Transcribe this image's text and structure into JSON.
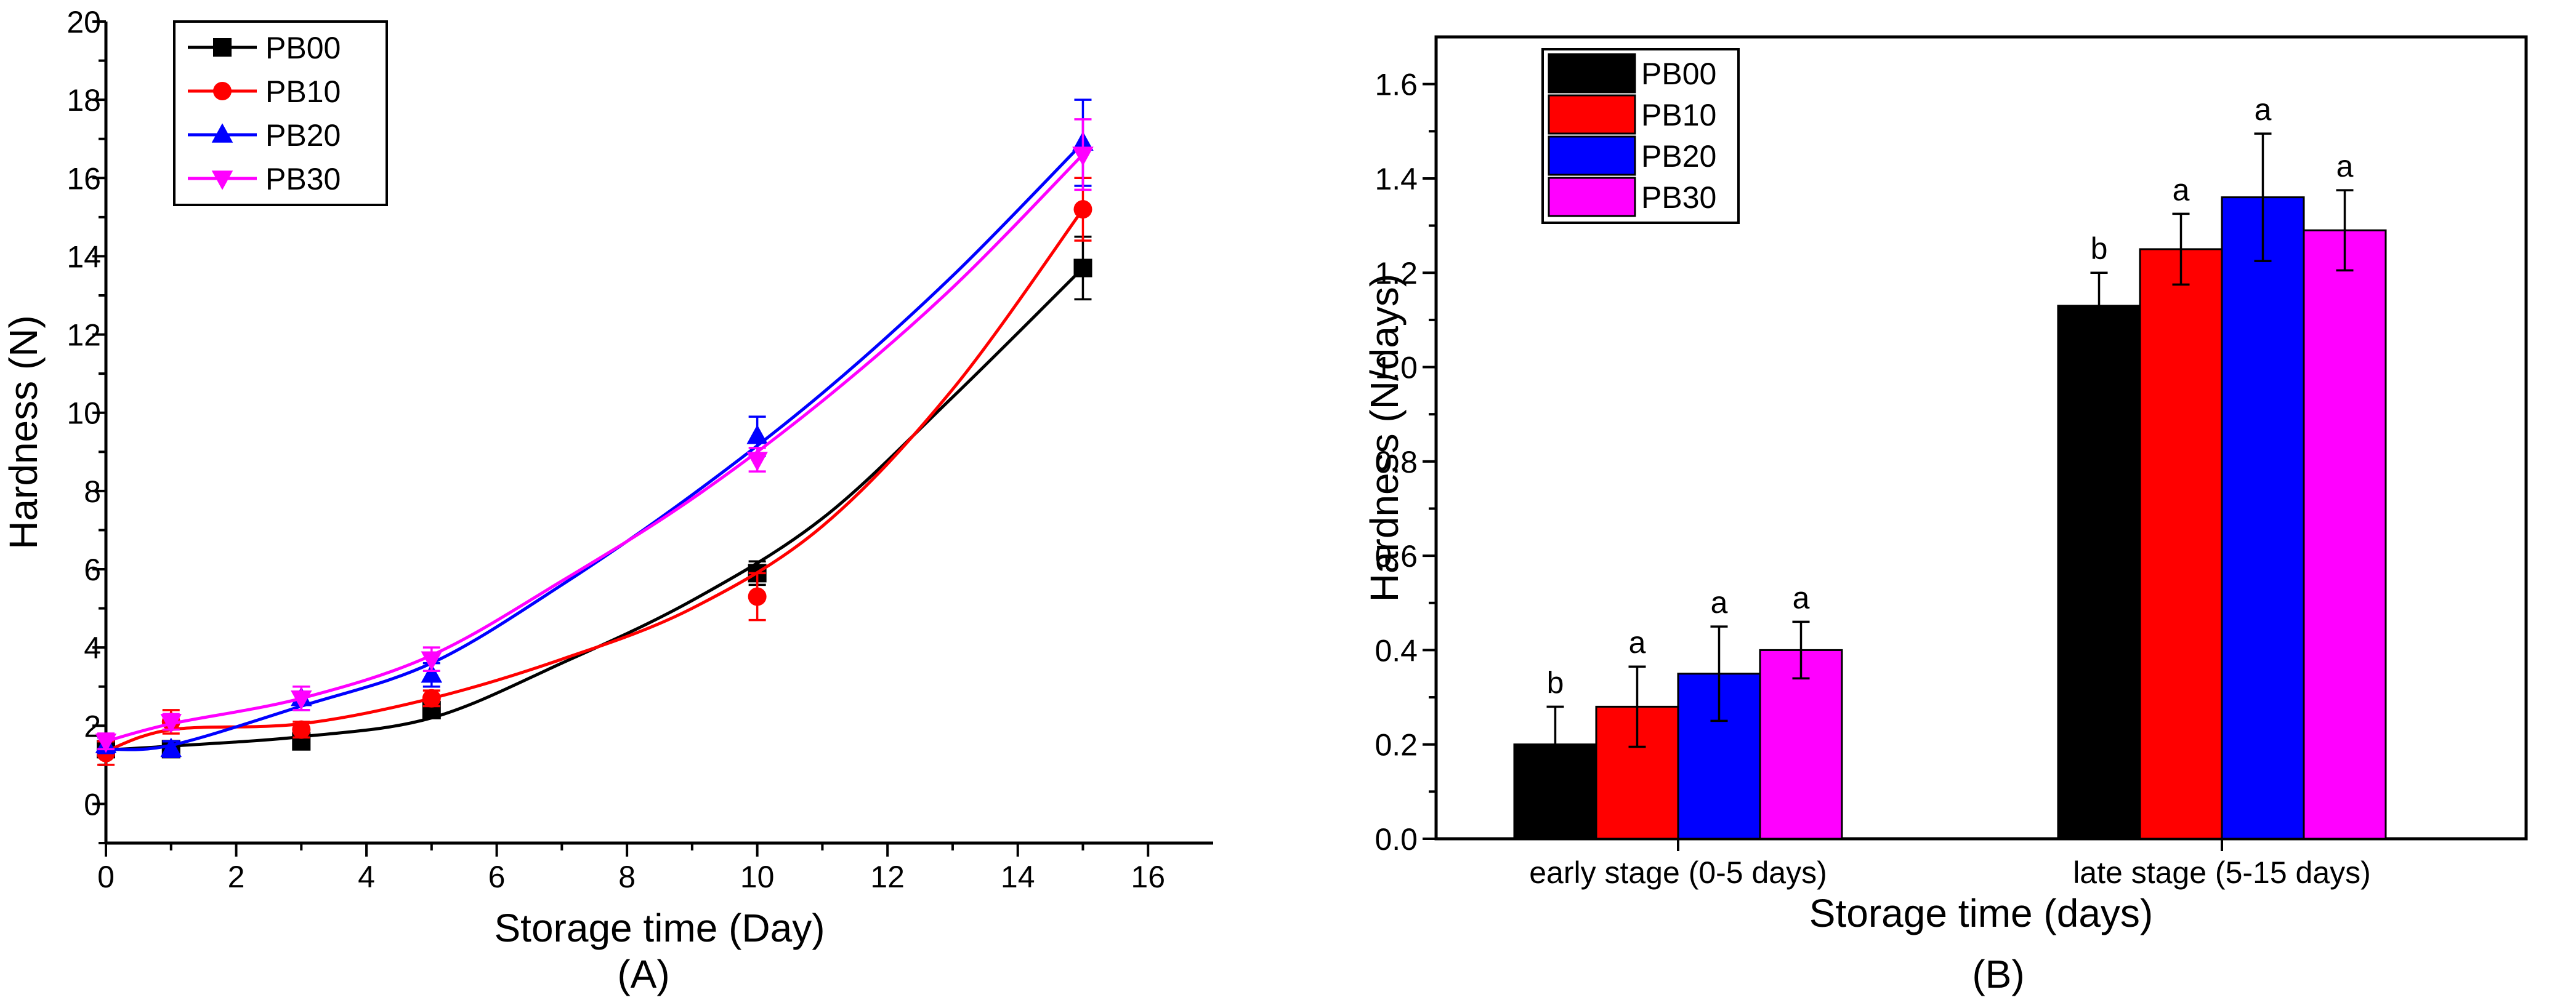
{
  "chart_data": [
    {
      "type": "line",
      "panel_label": "(A)",
      "xlabel": "Storage time (Day)",
      "ylabel": "Hardness (N)",
      "xlim": [
        0,
        17
      ],
      "ylim": [
        -1,
        20
      ],
      "x_ticks": [
        0,
        2,
        4,
        6,
        8,
        10,
        12,
        14,
        16
      ],
      "y_ticks": [
        0,
        2,
        4,
        6,
        8,
        10,
        12,
        14,
        16,
        18,
        20
      ],
      "legend_position": "top-left",
      "x": [
        0,
        1,
        3,
        5,
        10,
        15
      ],
      "series": [
        {
          "name": "PB00",
          "color": "#000000",
          "marker": "square",
          "values": [
            1.4,
            1.4,
            1.6,
            2.4,
            5.9,
            13.7
          ],
          "errors": [
            0.2,
            0.2,
            0.2,
            0.2,
            0.3,
            0.8
          ],
          "fit": [
            1.38,
            1.48,
            1.72,
            2.2,
            3.6,
            5.2,
            7.3,
            10.4,
            13.7
          ]
        },
        {
          "name": "PB10",
          "color": "#ff0000",
          "marker": "circle",
          "values": [
            1.3,
            2.1,
            1.9,
            2.7,
            5.3,
            15.2
          ],
          "errors": [
            0.3,
            0.3,
            0.2,
            0.2,
            0.6,
            0.8
          ],
          "fit": [
            1.35,
            1.9,
            2.05,
            2.7,
            3.7,
            5.0,
            7.1,
            10.6,
            15.2
          ]
        },
        {
          "name": "PB20",
          "color": "#0000ff",
          "marker": "triangle-up",
          "values": [
            1.5,
            1.4,
            2.7,
            3.3,
            9.4,
            16.9
          ],
          "errors": [
            0.2,
            0.2,
            0.3,
            0.3,
            0.5,
            1.1
          ],
          "fit": [
            1.4,
            1.5,
            2.5,
            3.6,
            5.6,
            7.9,
            10.5,
            13.5,
            16.9
          ]
        },
        {
          "name": "PB30",
          "color": "#ff00ff",
          "marker": "triangle-down",
          "values": [
            1.6,
            2.1,
            2.7,
            3.7,
            8.8,
            16.6
          ],
          "errors": [
            0.2,
            0.2,
            0.3,
            0.3,
            0.3,
            0.9
          ],
          "fit": [
            1.6,
            2.05,
            2.7,
            3.8,
            5.7,
            7.8,
            10.3,
            13.2,
            16.6
          ]
        }
      ],
      "fit_x": [
        0,
        1,
        3,
        5,
        7,
        9,
        11,
        13,
        15
      ]
    },
    {
      "type": "bar",
      "panel_label": "(B)",
      "xlabel": "Storage time (days)",
      "ylabel": "Hardness (N/days)",
      "ylim": [
        0,
        1.7
      ],
      "y_ticks": [
        0.0,
        0.2,
        0.4,
        0.6,
        0.8,
        1.0,
        1.2,
        1.4,
        1.6
      ],
      "y_tick_labels": [
        "0.0",
        "0.2",
        "0.4",
        "0.6",
        "0.8",
        "1.0",
        "1.2",
        "1.4",
        "1.6"
      ],
      "legend_position": "top-left",
      "categories": [
        "early stage (0-5 days)",
        "late stage (5-15 days)"
      ],
      "series": [
        {
          "name": "PB00",
          "color": "#000000",
          "values": [
            0.2,
            1.13
          ],
          "errors": [
            0.08,
            0.07
          ],
          "labels": [
            "b",
            "b"
          ]
        },
        {
          "name": "PB10",
          "color": "#ff0000",
          "values": [
            0.28,
            1.25
          ],
          "errors": [
            0.085,
            0.075
          ],
          "labels": [
            "a",
            "a"
          ]
        },
        {
          "name": "PB20",
          "color": "#0000ff",
          "values": [
            0.35,
            1.36
          ],
          "errors": [
            0.1,
            0.135
          ],
          "labels": [
            "a",
            "a"
          ]
        },
        {
          "name": "PB30",
          "color": "#ff00ff",
          "values": [
            0.4,
            1.29
          ],
          "errors": [
            0.06,
            0.085
          ],
          "labels": [
            "a",
            "a"
          ]
        }
      ]
    }
  ]
}
